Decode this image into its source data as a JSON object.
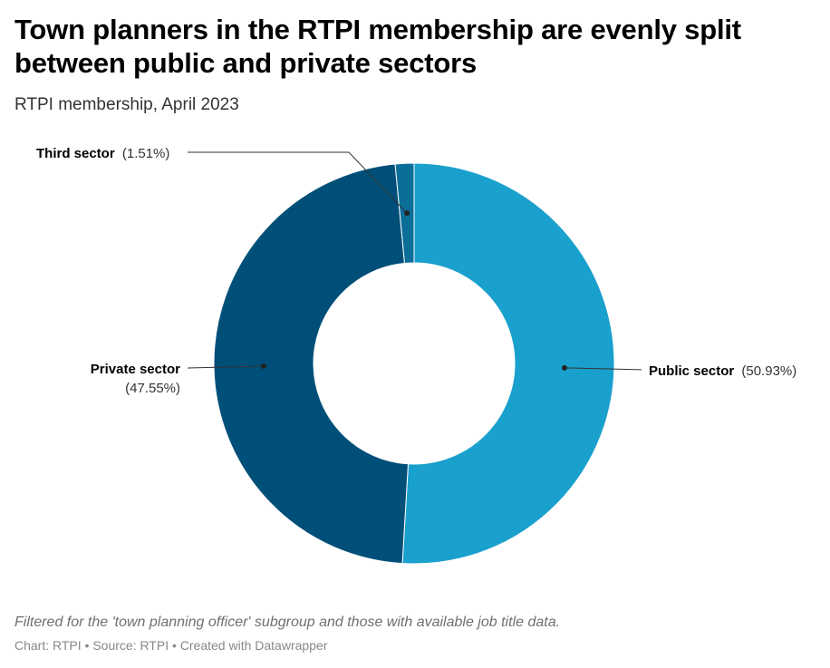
{
  "header": {
    "title": "Town planners in the RTPI membership are evenly split between public and private sectors",
    "subtitle": "RTPI membership, April 2023"
  },
  "chart_data": {
    "type": "pie",
    "variant": "donut",
    "categories": [
      "Public sector",
      "Private sector",
      "Third sector"
    ],
    "values": [
      50.93,
      47.55,
      1.51
    ],
    "value_labels": [
      "(50.93%)",
      "(47.55%)",
      "(1.51%)"
    ],
    "colors": [
      "#1aa0cd",
      "#004f78",
      "#0a6e99"
    ],
    "title": "Town planners in the RTPI membership are evenly split between public and private sectors",
    "subtitle": "RTPI membership, April 2023",
    "legend": "none (direct labels)"
  },
  "footer": {
    "note": "Filtered for the 'town planning officer' subgroup and those with available job title data.",
    "credits": "Chart: RTPI • Source: RTPI • Created with Datawrapper"
  }
}
